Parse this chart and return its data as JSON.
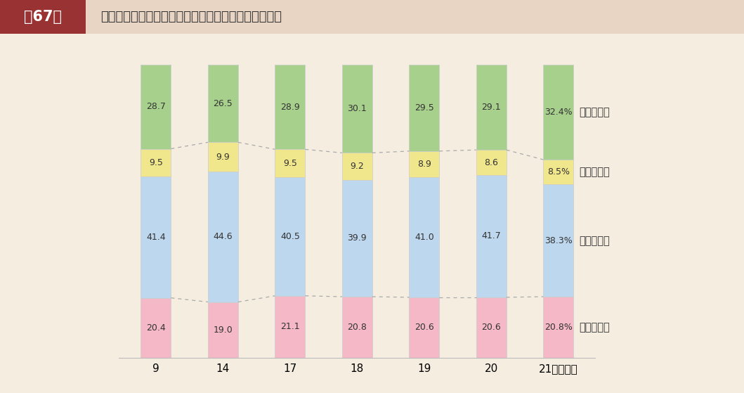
{
  "title_label": "第67図",
  "title_main": "普通建設事業費の財源構成比の推移（その１　総計）",
  "categories": [
    "9",
    "14",
    "17",
    "18",
    "19",
    "20",
    "21（年度）"
  ],
  "kokko": [
    20.4,
    19.0,
    21.1,
    20.8,
    20.6,
    20.6,
    20.8
  ],
  "chiho": [
    41.4,
    44.6,
    40.5,
    39.9,
    41.0,
    41.7,
    38.3
  ],
  "sono_ta": [
    9.5,
    9.9,
    9.5,
    9.2,
    8.9,
    8.6,
    8.5
  ],
  "ippan": [
    28.7,
    26.5,
    28.9,
    30.1,
    29.5,
    29.1,
    32.4
  ],
  "color_ippan": "#a8d08d",
  "color_sono_ta": "#f0e68c",
  "color_chiho": "#bdd7ee",
  "color_kokko": "#f4b8c7",
  "legend_labels": [
    "一般財源等",
    "そ　の　他",
    "地　方　債",
    "国庫支出金"
  ],
  "background_color": "#f5ede0",
  "header_left_color": "#993333",
  "header_right_color": "#e8d5c4",
  "bar_width": 0.45,
  "dashed_line_color": "#aaaaaa",
  "text_color": "#333333",
  "ymax": 110
}
